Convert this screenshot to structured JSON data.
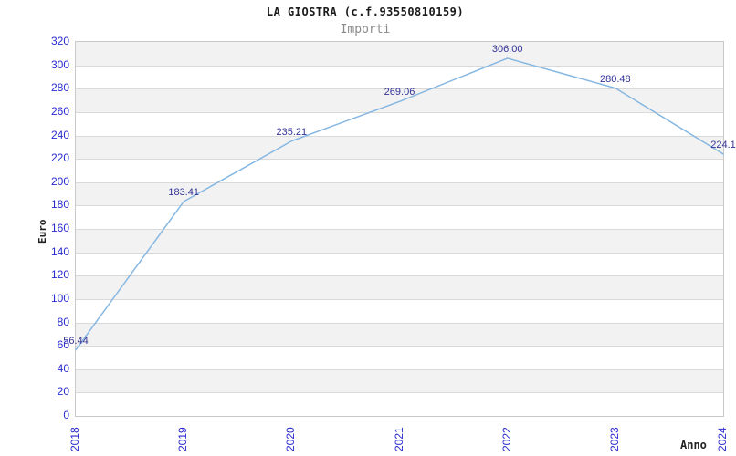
{
  "header": {
    "title": "LA GIOSTRA (c.f.93550810159)",
    "subtitle": "Importi"
  },
  "chart_data": {
    "type": "line",
    "title": "LA GIOSTRA (c.f.93550810159)",
    "subtitle": "Importi",
    "xlabel": "Anno",
    "ylabel": "Euro",
    "categories": [
      "2018",
      "2019",
      "2020",
      "2021",
      "2022",
      "2023",
      "2024"
    ],
    "series": [
      {
        "name": "Importi",
        "values": [
          56.44,
          183.41,
          235.21,
          269.06,
          306.0,
          280.48,
          224.1
        ]
      }
    ],
    "point_labels": [
      "56.44",
      "183.41",
      "235.21",
      "269.06",
      "306.00",
      "280.48",
      "224.1"
    ],
    "ylim": [
      0,
      320
    ],
    "yticks": [
      0,
      20,
      40,
      60,
      80,
      100,
      120,
      140,
      160,
      180,
      200,
      220,
      240,
      260,
      280,
      300,
      320
    ],
    "grid": "horizontal gridlines with alternating bands",
    "legend_position": "none",
    "colors": {
      "line": "#85b7e2",
      "tick_label": "#2a2ad0",
      "point_label": "#333399",
      "band_gray": "#f2f2f2",
      "band_white": "#ffffff",
      "gridline": "#d9d9d9",
      "plot_border": "#c9c9c9",
      "title": "#1a1a1a",
      "subtitle": "#8a8a8a",
      "axis_title": "#222222"
    }
  }
}
